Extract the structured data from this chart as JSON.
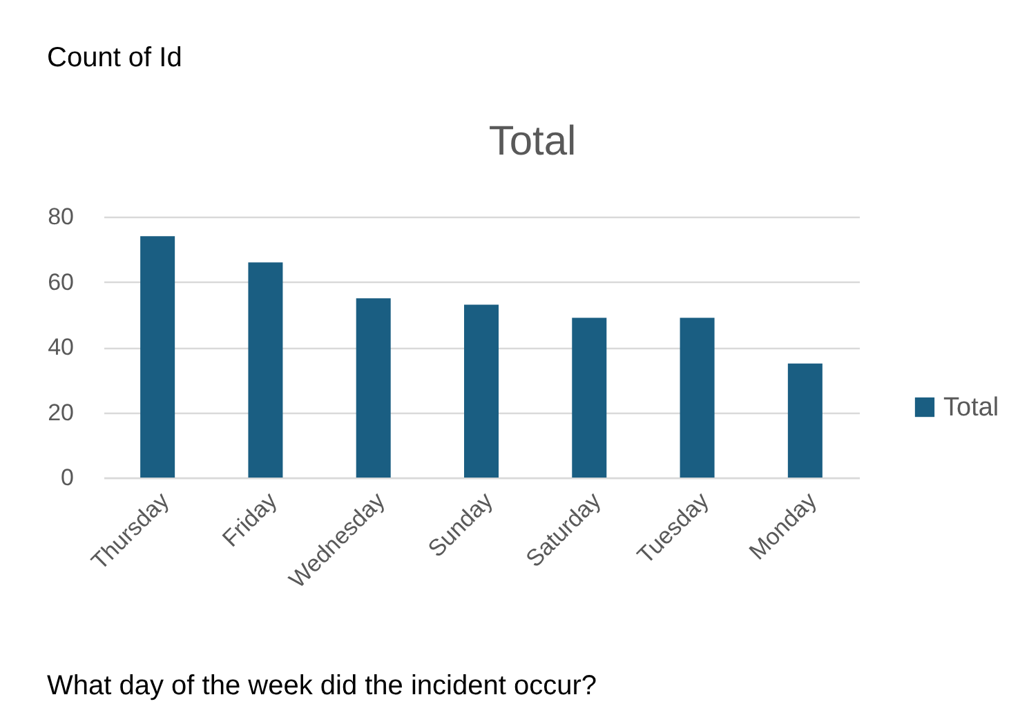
{
  "chart_data": {
    "type": "bar",
    "title": "Total",
    "categories": [
      "Thursday",
      "Friday",
      "Wednesday",
      "Sunday",
      "Saturday",
      "Tuesday",
      "Monday"
    ],
    "series": [
      {
        "name": "Total",
        "color": "#1a5e82",
        "values": [
          74,
          66,
          55,
          53,
          49,
          49,
          35
        ]
      }
    ],
    "ylim": [
      0,
      80
    ],
    "yticks": [
      0,
      20,
      40,
      60,
      80
    ],
    "grid": "y",
    "legend": "right",
    "annotations": [
      "Count of Id",
      "What day of the week did the incident occur?"
    ]
  }
}
